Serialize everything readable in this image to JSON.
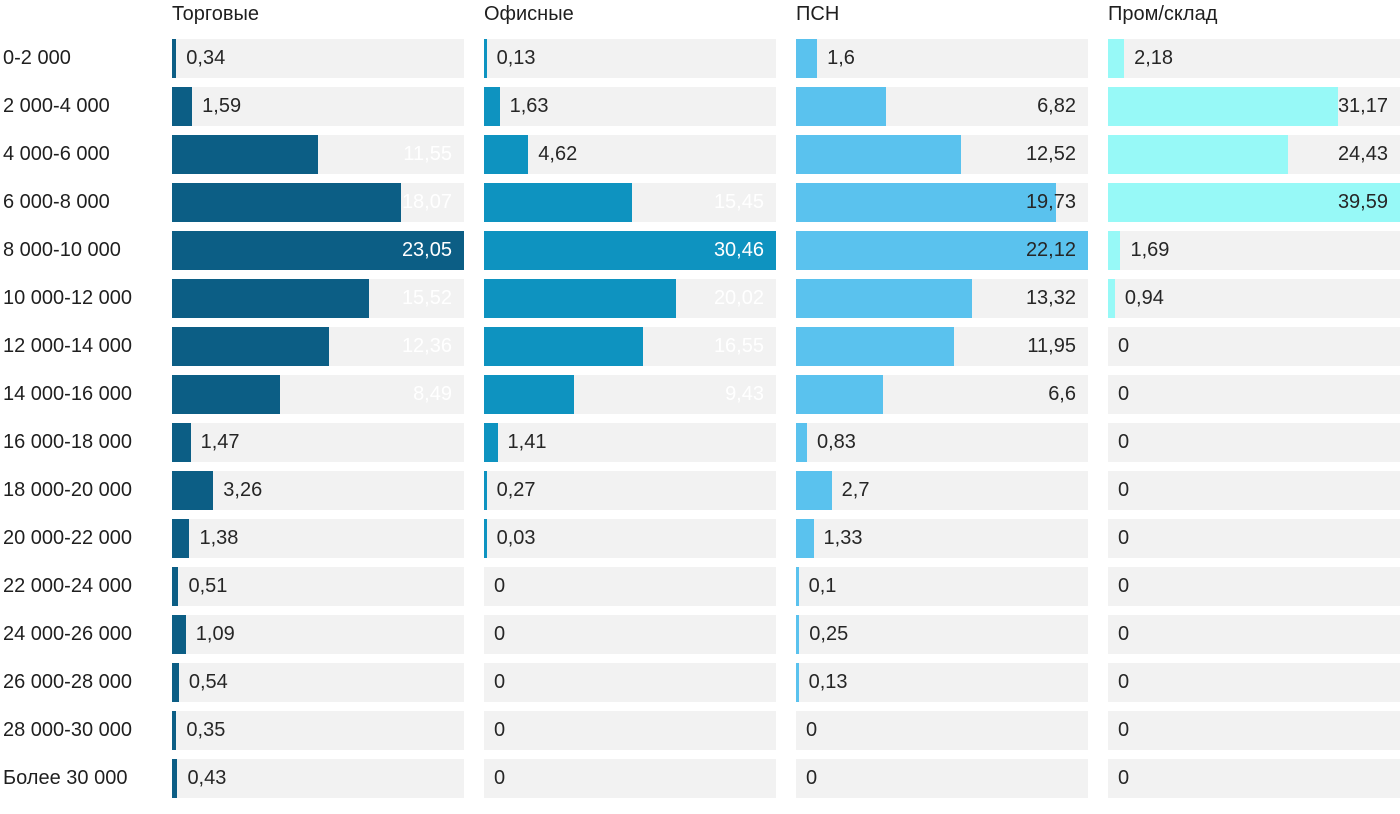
{
  "chart_data": {
    "type": "bar",
    "orientation": "horizontal",
    "title": "",
    "xlabel": "",
    "ylabel": "",
    "grid": false,
    "legend_position": "column-headers-top",
    "scaling": "each series scaled independently to its own max value",
    "track_color": "#f2f2f2",
    "text_color": "#262626",
    "decimal_separator": ",",
    "categories": [
      "0-2 000",
      "2 000-4 000",
      "4 000-6 000",
      "6 000-8 000",
      "8 000-10 000",
      "10 000-12 000",
      "12 000-14 000",
      "14 000-16 000",
      "16 000-18 000",
      "18 000-20 000",
      "20 000-22 000",
      "22 000-24 000",
      "24 000-26 000",
      "26 000-28 000",
      "28 000-30 000",
      "Более 30 000"
    ],
    "series": [
      {
        "name": "Торговые",
        "color": "#0c5e85",
        "inside_label_color": "#ffffff",
        "values": [
          0.34,
          1.59,
          11.55,
          18.07,
          23.05,
          15.52,
          12.36,
          8.49,
          1.47,
          3.26,
          1.38,
          0.51,
          1.09,
          0.54,
          0.35,
          0.43
        ]
      },
      {
        "name": "Офисные",
        "color": "#0e93c0",
        "inside_label_color": "#ffffff",
        "values": [
          0.13,
          1.63,
          4.62,
          15.45,
          30.46,
          20.02,
          16.55,
          9.43,
          1.41,
          0.27,
          0.03,
          0,
          0,
          0,
          0,
          0
        ]
      },
      {
        "name": "ПСН",
        "color": "#5ac2ee",
        "inside_label_color": "#262626",
        "values": [
          1.6,
          6.82,
          12.52,
          19.73,
          22.12,
          13.32,
          11.95,
          6.6,
          0.83,
          2.7,
          1.33,
          0.1,
          0.25,
          0.13,
          0,
          0
        ]
      },
      {
        "name": "Пром/склад",
        "color": "#97f9f7",
        "inside_label_color": "#262626",
        "values": [
          2.18,
          31.17,
          24.43,
          39.59,
          1.69,
          0.94,
          0,
          0,
          0,
          0,
          0,
          0,
          0,
          0,
          0,
          0
        ]
      }
    ]
  }
}
